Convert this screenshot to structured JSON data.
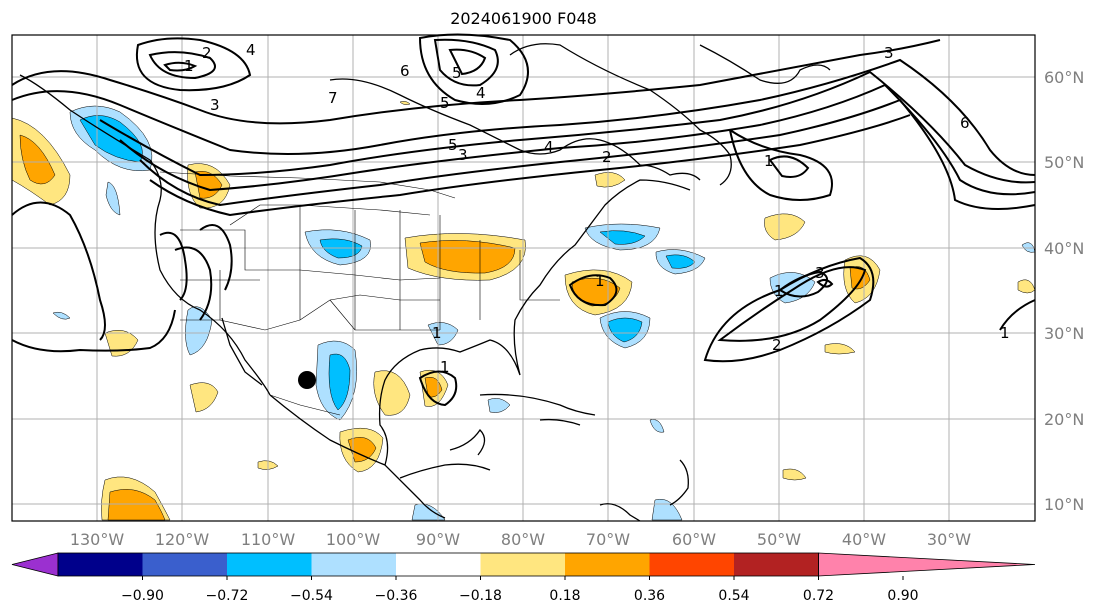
{
  "title": "2024061900 F048",
  "map": {
    "longitude_labels": [
      "130°W",
      "120°W",
      "110°W",
      "100°W",
      "90°W",
      "80°W",
      "70°W",
      "60°W",
      "50°W",
      "40°W",
      "30°W"
    ],
    "latitude_labels": [
      "60°N",
      "50°N",
      "40°N",
      "30°N",
      "20°N",
      "10°N"
    ],
    "contour_labels": [
      "2",
      "1",
      "3",
      "4",
      "6",
      "5",
      "5",
      "3",
      "4",
      "2",
      "1",
      "1",
      "3",
      "1",
      "2",
      "1",
      "3",
      "6",
      "4",
      "5",
      "7",
      "1",
      "1"
    ],
    "marker": "black-dot"
  },
  "colorbar": {
    "ticks": [
      "−0.90",
      "−0.72",
      "−0.54",
      "−0.36",
      "−0.18",
      "0.18",
      "0.36",
      "0.54",
      "0.72",
      "0.90"
    ],
    "colors": [
      "#9b30d0",
      "#00008b",
      "#3a5fcd",
      "#00bfff",
      "#aee0ff",
      "#ffffff",
      "#ffe680",
      "#ffa500",
      "#ff4500",
      "#b22222",
      "#ff82ab"
    ]
  }
}
